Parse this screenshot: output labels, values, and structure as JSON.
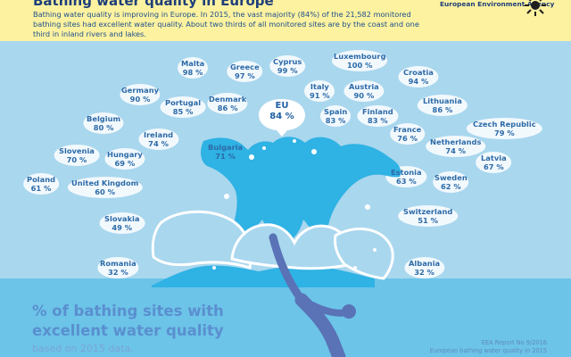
{
  "header": {
    "title": "Bathing water quality in Europe",
    "intro": "Bathing water quality is improving in Europe. In 2015, the vast majority (84%) of the 21,582 monitored bathing sites had excellent water quality. About two thirds of all monitored sites are by the coast and one third in inland rivers and lakes.",
    "agency": "European Environment Agency"
  },
  "eu": {
    "name": "EU",
    "value": "84 %"
  },
  "countries": [
    {
      "name": "Malta",
      "value": "98 %"
    },
    {
      "name": "Greece",
      "value": "97 %"
    },
    {
      "name": "Cyprus",
      "value": "99 %"
    },
    {
      "name": "Luxembourg",
      "value": "100 %"
    },
    {
      "name": "Croatia",
      "value": "94 %"
    },
    {
      "name": "Germany",
      "value": "90 %"
    },
    {
      "name": "Italy",
      "value": "91 %"
    },
    {
      "name": "Austria",
      "value": "90 %"
    },
    {
      "name": "Portugal",
      "value": "85 %"
    },
    {
      "name": "Denmark",
      "value": "86 %"
    },
    {
      "name": "Lithuania",
      "value": "86 %"
    },
    {
      "name": "Spain",
      "value": "83 %"
    },
    {
      "name": "Finland",
      "value": "83 %"
    },
    {
      "name": "Belgium",
      "value": "80 %"
    },
    {
      "name": "Czech Republic",
      "value": "79 %"
    },
    {
      "name": "France",
      "value": "76 %"
    },
    {
      "name": "Ireland",
      "value": "74 %"
    },
    {
      "name": "Netherlands",
      "value": "74 %"
    },
    {
      "name": "Slovenia",
      "value": "70 %"
    },
    {
      "name": "Bulgaria",
      "value": "71 %"
    },
    {
      "name": "Hungary",
      "value": "69 %"
    },
    {
      "name": "Latvia",
      "value": "67 %"
    },
    {
      "name": "Estonia",
      "value": "63 %"
    },
    {
      "name": "Poland",
      "value": "61 %"
    },
    {
      "name": "United Kingdom",
      "value": "60 %"
    },
    {
      "name": "Sweden",
      "value": "62 %"
    },
    {
      "name": "Slovakia",
      "value": "49 %"
    },
    {
      "name": "Switzerland",
      "value": "51 %"
    },
    {
      "name": "Romania",
      "value": "32 %"
    },
    {
      "name": "Albania",
      "value": "32 %"
    }
  ],
  "caption": {
    "line1": "% of bathing sites with",
    "line2": "excellent water quality",
    "sub": "based on 2015 data."
  },
  "report": {
    "line1": "EEA Report No 9/2016",
    "line2": "European bathing water quality in 2015"
  },
  "colors": {
    "header_bg": "#fcf29f",
    "sky": "#a9d7ee",
    "sea": "#6cc4e8",
    "splash": "#2fb2e4",
    "diver": "#5a72b6",
    "text_blue": "#2c6aa8"
  }
}
